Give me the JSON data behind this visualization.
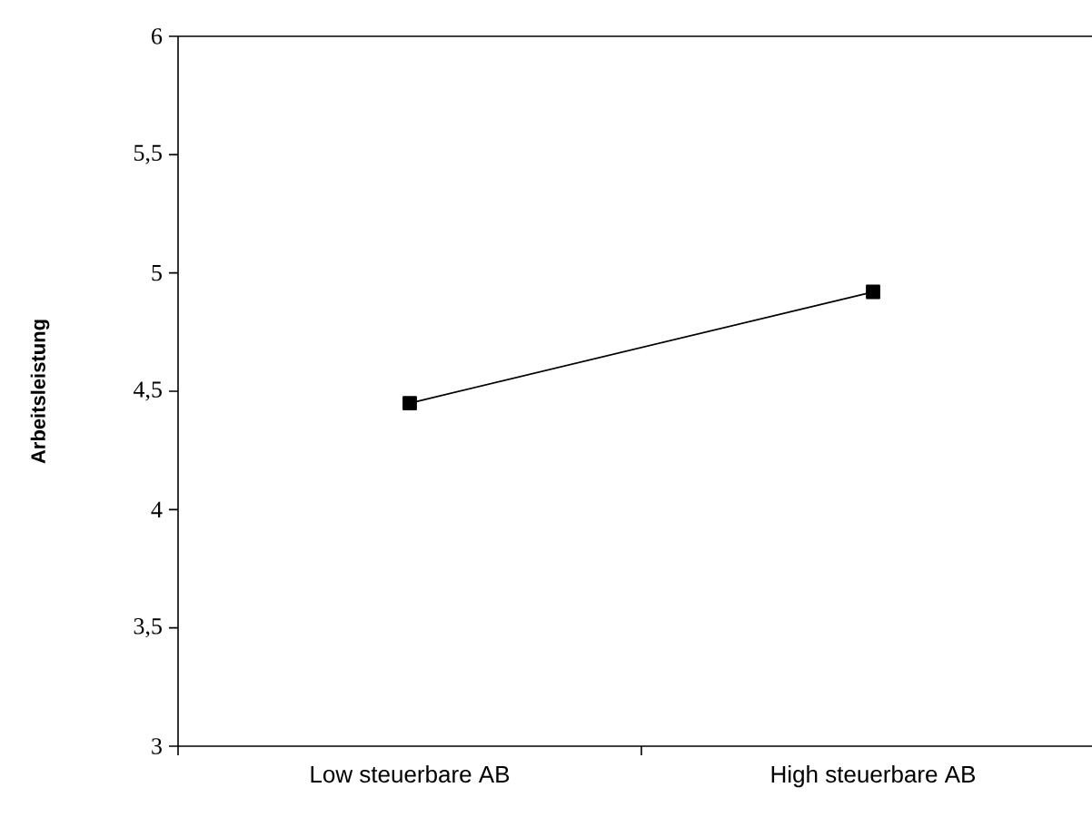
{
  "chart_data": {
    "type": "line",
    "ylabel": "Arbeitsleistung",
    "categories": [
      "Low steuerbare AB",
      "High steuerbare AB"
    ],
    "series": [
      {
        "color": "#000000",
        "values": [
          4.45,
          4.92
        ]
      }
    ],
    "ylim": [
      3,
      6
    ],
    "yticks": [
      {
        "value": 3,
        "label": "3"
      },
      {
        "value": 3.5,
        "label": "3,5"
      },
      {
        "value": 4,
        "label": "4"
      },
      {
        "value": 4.5,
        "label": "4,5"
      },
      {
        "value": 5,
        "label": "5"
      },
      {
        "value": 5.5,
        "label": "5,5"
      },
      {
        "value": 6,
        "label": "6"
      }
    ],
    "marker": "square",
    "line_style": "solid"
  }
}
